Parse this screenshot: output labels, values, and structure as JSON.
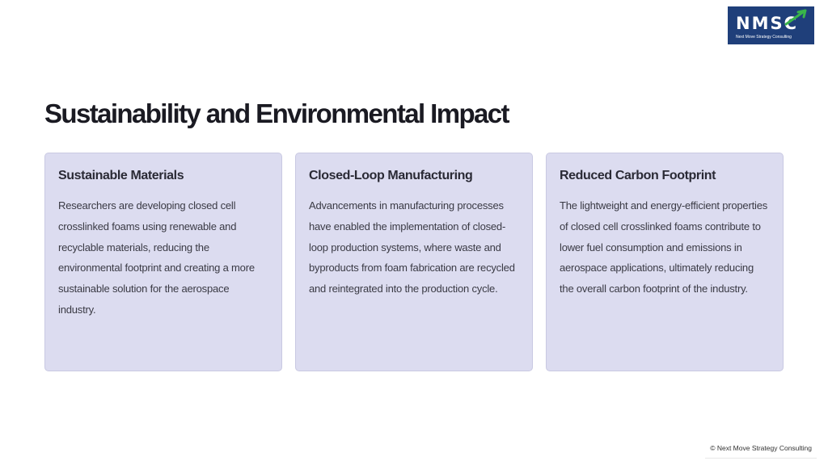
{
  "logo": {
    "mark": "NMSC",
    "tagline": "Next Move Strategy Consulting",
    "bg_color": "#1f3f7a",
    "arrow_color": "#39b54a"
  },
  "title": "Sustainability and Environmental Impact",
  "cards": [
    {
      "title": "Sustainable Materials",
      "body": "Researchers are developing closed cell crosslinked foams using renewable and recyclable materials, reducing the environmental footprint and creating a more sustainable solution for the aerospace industry."
    },
    {
      "title": "Closed-Loop Manufacturing",
      "body": "Advancements in manufacturing processes have enabled the implementation of closed-loop production systems, where waste and byproducts from foam fabrication are recycled and reintegrated into the production cycle."
    },
    {
      "title": "Reduced Carbon Footprint",
      "body": "The lightweight and energy-efficient properties of closed cell crosslinked foams contribute to lower fuel consumption and emissions in aerospace applications, ultimately reducing the overall carbon footprint of the industry."
    }
  ],
  "colors": {
    "card_bg": "#dcdcf0",
    "card_border": "#c9c9e2",
    "title_text": "#1a1a22"
  },
  "footer": {
    "copyright": "© Next Move Strategy Consulting"
  }
}
